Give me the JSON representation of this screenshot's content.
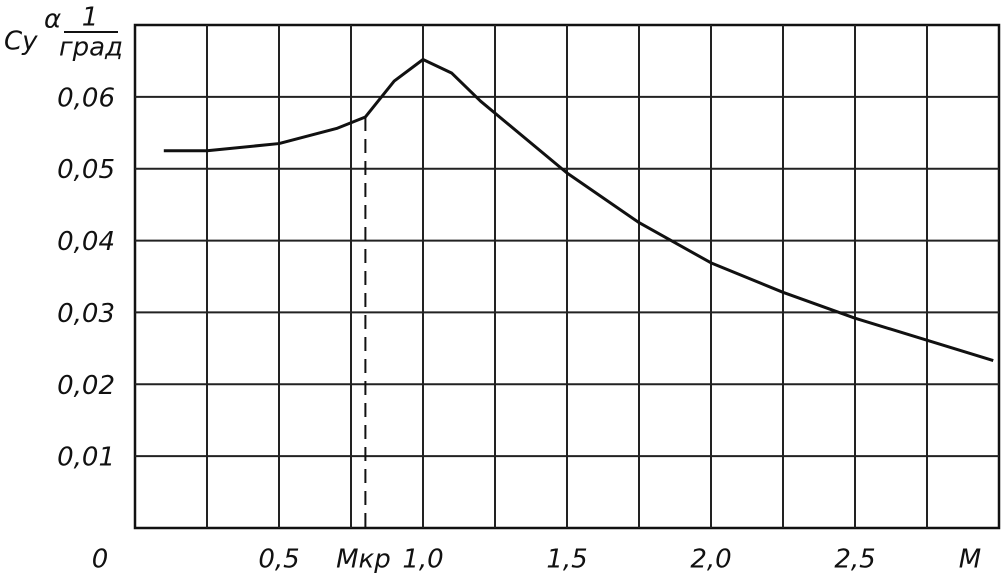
{
  "chart_data": {
    "type": "line",
    "y_label": {
      "main": "Cy",
      "sup": "α",
      "num": "1",
      "den": "град"
    },
    "x_label": "M",
    "x": [
      0.1,
      0.25,
      0.5,
      0.7,
      0.8,
      0.9,
      1.0,
      1.1,
      1.2,
      1.5,
      1.75,
      2.0,
      2.25,
      2.5,
      2.98
    ],
    "series": [
      {
        "color": "#111111",
        "values": [
          0.0525,
          0.0525,
          0.0535,
          0.0556,
          0.0572,
          0.0622,
          0.0652,
          0.0633,
          0.0594,
          0.0494,
          0.0425,
          0.0369,
          0.0328,
          0.0292,
          0.0233
        ]
      }
    ],
    "xlim": [
      0,
      3
    ],
    "ylim": [
      0,
      0.07
    ],
    "xticks": [
      {
        "value": 0,
        "label": "0"
      },
      {
        "value": 0.5,
        "label": "0,5"
      },
      {
        "value": 1.0,
        "label": "1,0"
      },
      {
        "value": 1.5,
        "label": "1,5"
      },
      {
        "value": 2.0,
        "label": "2,0"
      },
      {
        "value": 2.5,
        "label": "2,5"
      }
    ],
    "xminorticks": [
      0.25,
      0.75,
      1.25,
      1.75,
      2.25,
      2.75
    ],
    "yticks": [
      {
        "value": 0.01,
        "label": "0,01"
      },
      {
        "value": 0.02,
        "label": "0,02"
      },
      {
        "value": 0.03,
        "label": "0,03"
      },
      {
        "value": 0.04,
        "label": "0,04"
      },
      {
        "value": 0.05,
        "label": "0,05"
      },
      {
        "value": 0.06,
        "label": "0,06"
      }
    ],
    "annotations": [
      {
        "label": "Mкр",
        "x": 0.8,
        "y": 0.0572
      }
    ],
    "grid": true
  }
}
